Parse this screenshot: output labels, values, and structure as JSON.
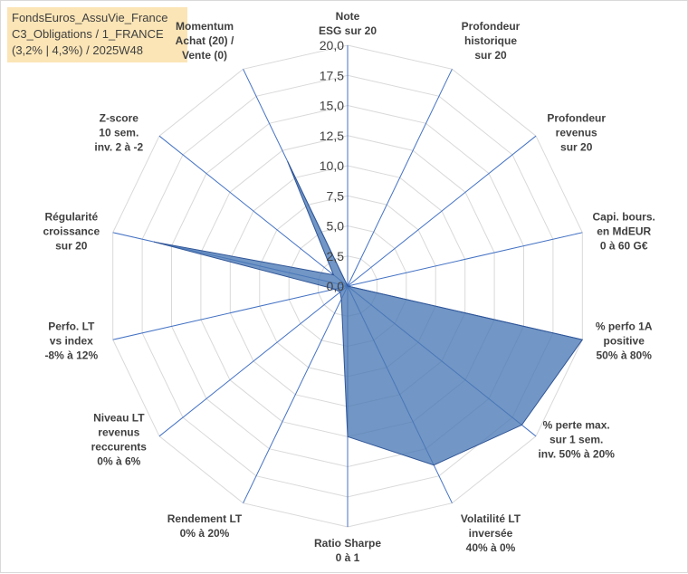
{
  "title": {
    "line1": "FondsEuros_AssuVie_France",
    "line2": "C3_Obligations / 1_FRANCE",
    "line3": "(3,2% | 4,3%) / 2025W48"
  },
  "chart_data": {
    "type": "radar",
    "rmin": 0,
    "rmax": 20,
    "ticks": [
      "0,0",
      "2,5",
      "5,0",
      "7,5",
      "10,0",
      "12,5",
      "15,0",
      "17,5",
      "20,0"
    ],
    "tick_values": [
      0,
      2.5,
      5,
      7.5,
      10,
      12.5,
      15,
      17.5,
      20
    ],
    "axes": [
      {
        "lines": [
          "Note",
          "ESG sur 20"
        ]
      },
      {
        "lines": [
          "Profondeur",
          "historique",
          "sur 20"
        ]
      },
      {
        "lines": [
          "Profondeur",
          "revenus",
          "sur 20"
        ]
      },
      {
        "lines": [
          "Capi. bours.",
          "en MdEUR",
          "0 à 60 G€"
        ]
      },
      {
        "lines": [
          "% perfo 1A",
          "positive",
          "50% à 80%"
        ]
      },
      {
        "lines": [
          "% perte max.",
          "sur 1 sem.",
          "inv. 50% à 20%"
        ]
      },
      {
        "lines": [
          "Volatilité LT",
          "inversée",
          "40% à 0%"
        ]
      },
      {
        "lines": [
          "Ratio Sharpe",
          "0 à 1"
        ]
      },
      {
        "lines": [
          "Rendement LT",
          "0% à 20%"
        ]
      },
      {
        "lines": [
          "Niveau LT",
          "revenus",
          "reccurents",
          "0% à 6%"
        ]
      },
      {
        "lines": [
          "Perfo. LT",
          "vs index",
          "-8% à 12%"
        ]
      },
      {
        "lines": [
          "Régularité",
          "croissance",
          "sur 20"
        ]
      },
      {
        "lines": [
          "Z-score",
          "10 sem.",
          "inv. 2 à -2"
        ]
      },
      {
        "lines": [
          "Momentum",
          "Achat (20) /",
          "Vente (0)"
        ]
      }
    ],
    "series": [
      {
        "name": "FondsEuros_AssuVie_France",
        "values": [
          0,
          0,
          0,
          0,
          20,
          18.5,
          16.5,
          12.5,
          1.2,
          0.8,
          1.1,
          16.5,
          1.5,
          11.5
        ]
      }
    ]
  }
}
